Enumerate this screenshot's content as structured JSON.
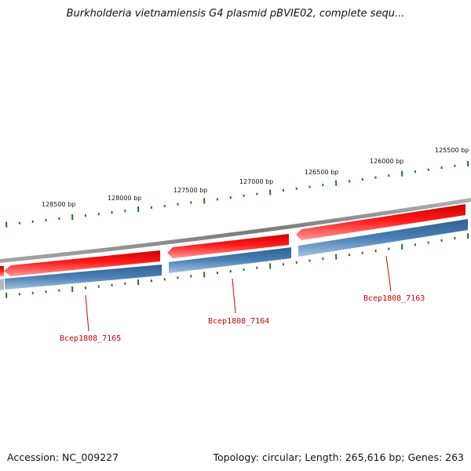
{
  "title": "Burkholderia vietnamiensis G4 plasmid pBVIE02, complete sequ...",
  "footer": {
    "accession": "Accession: NC_009227",
    "summary": "Topology: circular; Length: 265,616 bp; Genes: 263"
  },
  "scale": {
    "tick_labels": [
      "128500 bp",
      "128000 bp",
      "127500 bp",
      "127000 bp",
      "126500 bp",
      "126000 bp",
      "125500 bp"
    ],
    "tick_color": "#1a7a1a"
  },
  "genes": {
    "labels": [
      "Bcep1808_7165",
      "Bcep1808_7164",
      "Bcep1808_7163"
    ],
    "cds_color": "#ee1111",
    "gene_color": "#3f75aa",
    "label_color": "#cc0000"
  },
  "backbone_color": "#808080"
}
